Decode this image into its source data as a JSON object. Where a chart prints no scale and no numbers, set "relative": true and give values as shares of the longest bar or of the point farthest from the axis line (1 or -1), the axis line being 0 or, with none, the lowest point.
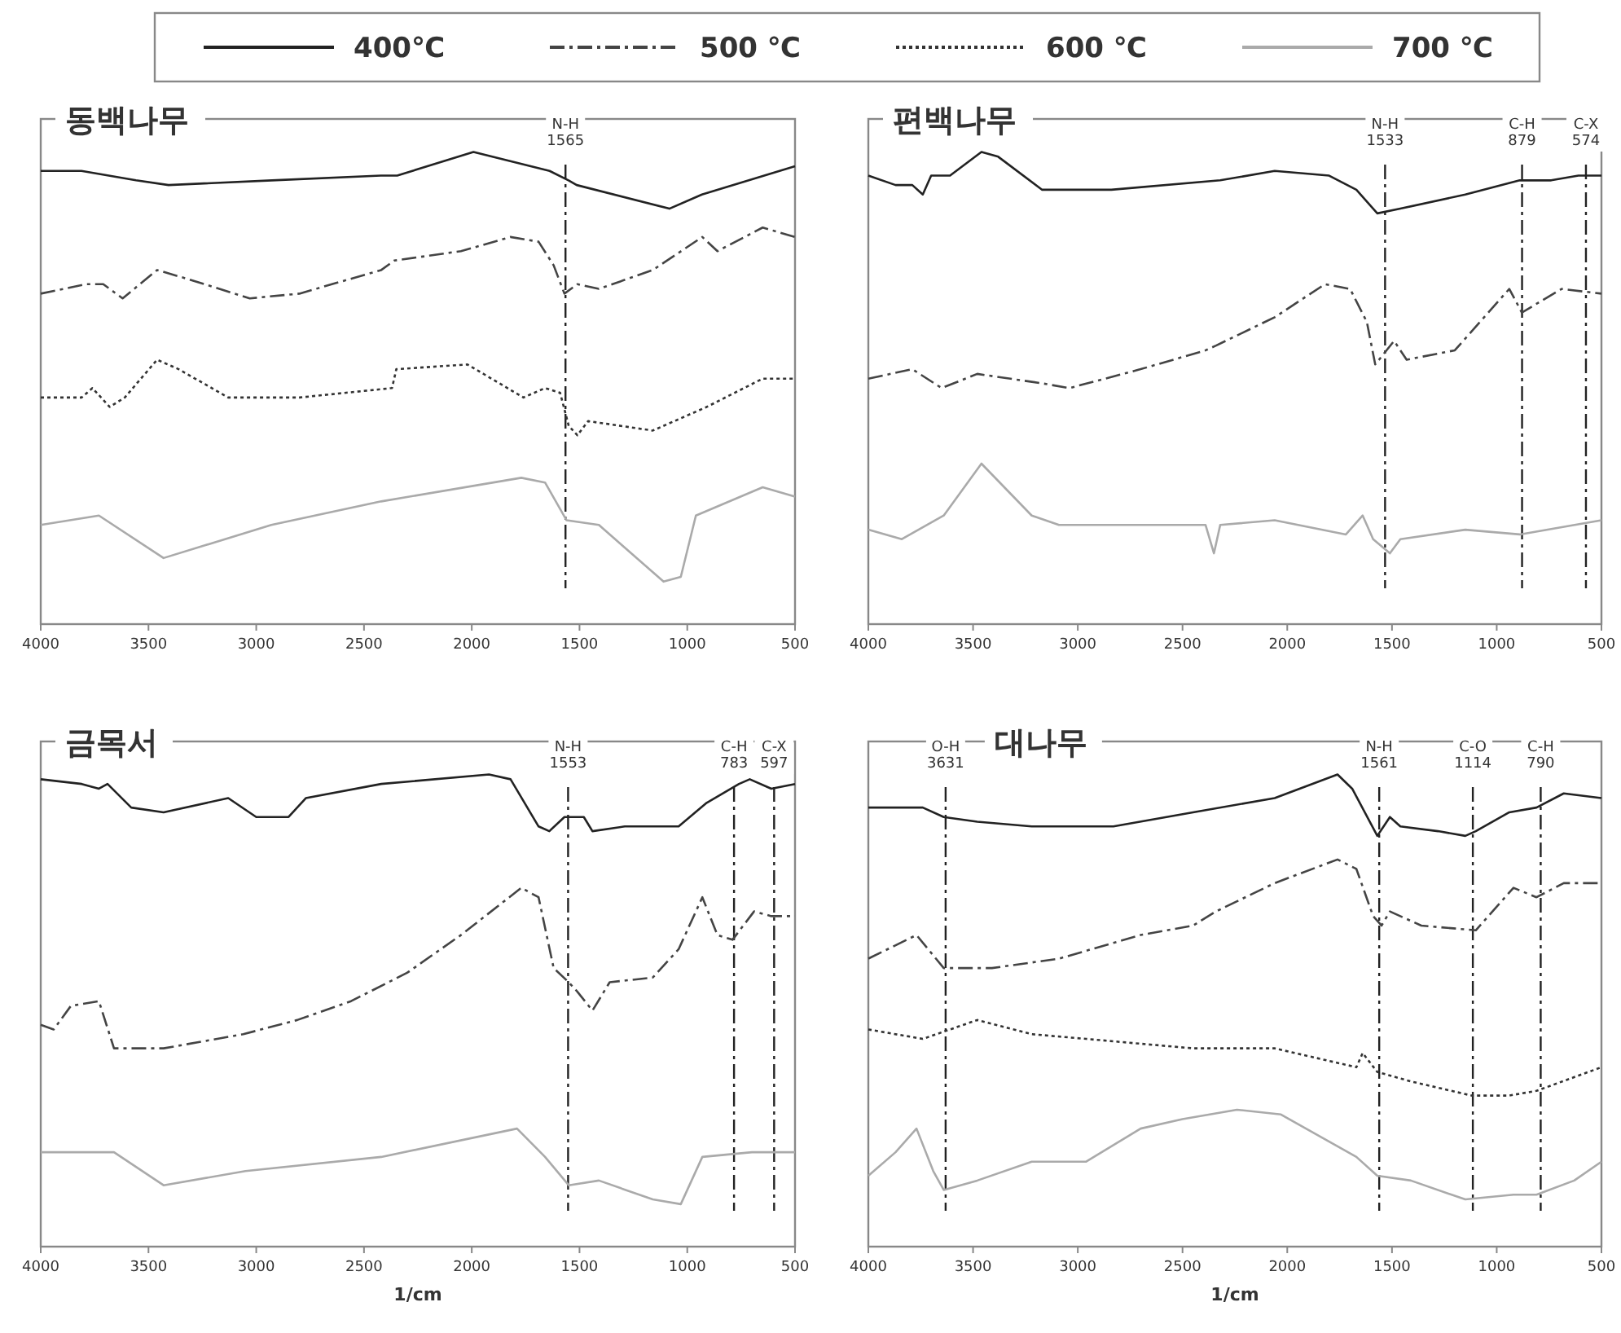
{
  "chart_data": [
    {
      "type": "line",
      "title": "동백나무",
      "relative": true,
      "legend": "top",
      "xlim": [
        4000,
        500
      ],
      "xticks": [
        4000,
        3500,
        3000,
        2500,
        2000,
        1500,
        1000,
        500
      ],
      "ref_lines": [
        {
          "axis": "x",
          "value": 1565,
          "label": "N-H\n1565",
          "line_style": "dashed",
          "color": "#222222"
        }
      ],
      "series": [
        {
          "name": "400℃",
          "color": "#222222",
          "line_style": "solid",
          "x": [
            4000,
            3811,
            3558,
            3407,
            2927,
            2422,
            2346,
            1992,
            1639,
            1551,
            1513,
            1083,
            932,
            500
          ],
          "values": [
            0.96,
            0.96,
            0.94,
            0.93,
            0.94,
            0.95,
            0.95,
            1.0,
            0.96,
            0.94,
            0.93,
            0.88,
            0.91,
            0.97
          ]
        },
        {
          "name": "500 ℃",
          "color": "#444444",
          "line_style": "dashed",
          "x": [
            4000,
            3790,
            3710,
            3620,
            3460,
            3310,
            3030,
            2800,
            2420,
            2360,
            2050,
            1820,
            1690,
            1620,
            1570,
            1510,
            1410,
            1160,
            930,
            860,
            650,
            500
          ],
          "values": [
            0.7,
            0.72,
            0.72,
            0.69,
            0.75,
            0.73,
            0.69,
            0.7,
            0.75,
            0.77,
            0.79,
            0.82,
            0.81,
            0.76,
            0.7,
            0.72,
            0.71,
            0.75,
            0.82,
            0.79,
            0.84,
            0.82
          ]
        },
        {
          "name": "600 ℃",
          "color": "#333333",
          "line_style": "dotted",
          "x": [
            4000,
            3810,
            3760,
            3680,
            3610,
            3460,
            3360,
            3130,
            2800,
            2370,
            2350,
            2020,
            1760,
            1660,
            1590,
            1550,
            1510,
            1460,
            1160,
            910,
            650,
            500
          ],
          "values": [
            0.48,
            0.48,
            0.5,
            0.46,
            0.48,
            0.56,
            0.54,
            0.48,
            0.48,
            0.5,
            0.54,
            0.55,
            0.48,
            0.5,
            0.49,
            0.42,
            0.4,
            0.43,
            0.41,
            0.46,
            0.52,
            0.52
          ]
        },
        {
          "name": "700 ℃",
          "color": "#aaaaaa",
          "line_style": "solid",
          "x": [
            4000,
            3730,
            3430,
            2930,
            2420,
            1770,
            1660,
            1560,
            1410,
            1110,
            1030,
            960,
            650,
            500
          ],
          "values": [
            0.21,
            0.23,
            0.14,
            0.21,
            0.26,
            0.31,
            0.3,
            0.22,
            0.21,
            0.09,
            0.1,
            0.23,
            0.29,
            0.27
          ]
        }
      ]
    },
    {
      "type": "line",
      "title": "편백나무",
      "relative": true,
      "xlim": [
        4000,
        500
      ],
      "xticks": [
        4000,
        3500,
        3000,
        2500,
        2000,
        1500,
        1000,
        500
      ],
      "ref_lines": [
        {
          "axis": "x",
          "value": 1533,
          "label": "N-H\n1533",
          "line_style": "dashed",
          "color": "#222222"
        },
        {
          "axis": "x",
          "value": 879,
          "label": "C-H\n879",
          "line_style": "dashed",
          "color": "#222222"
        },
        {
          "axis": "x",
          "value": 574,
          "label": "C-X\n574",
          "line_style": "dashed",
          "color": "#222222"
        }
      ],
      "series": [
        {
          "color": "#222222",
          "line_style": "solid",
          "x": [
            4000,
            3870,
            3790,
            3740,
            3700,
            3610,
            3460,
            3380,
            3170,
            2840,
            2320,
            2060,
            1800,
            1670,
            1570,
            1460,
            1150,
            890,
            740,
            610,
            500
          ],
          "values": [
            0.95,
            0.93,
            0.93,
            0.91,
            0.95,
            0.95,
            1.0,
            0.99,
            0.92,
            0.92,
            0.94,
            0.96,
            0.95,
            0.92,
            0.87,
            0.88,
            0.91,
            0.94,
            0.94,
            0.95,
            0.95
          ]
        },
        {
          "color": "#444444",
          "line_style": "dashed",
          "x": [
            4000,
            3790,
            3650,
            3480,
            3170,
            3040,
            2700,
            2390,
            2340,
            2060,
            1820,
            1700,
            1620,
            1580,
            1490,
            1430,
            1200,
            940,
            880,
            690,
            500
          ],
          "values": [
            0.52,
            0.54,
            0.5,
            0.53,
            0.51,
            0.5,
            0.54,
            0.58,
            0.59,
            0.65,
            0.72,
            0.71,
            0.64,
            0.55,
            0.6,
            0.56,
            0.58,
            0.71,
            0.66,
            0.71,
            0.7
          ]
        },
        {
          "color": "#aaaaaa",
          "line_style": "solid",
          "x": [
            4000,
            3840,
            3640,
            3460,
            3220,
            3090,
            2390,
            2350,
            2320,
            2060,
            1720,
            1640,
            1590,
            1510,
            1460,
            1150,
            890,
            500
          ],
          "values": [
            0.2,
            0.18,
            0.23,
            0.34,
            0.23,
            0.21,
            0.21,
            0.15,
            0.21,
            0.22,
            0.19,
            0.23,
            0.18,
            0.15,
            0.18,
            0.2,
            0.19,
            0.22
          ]
        }
      ]
    },
    {
      "type": "line",
      "title": "금목서",
      "xlabel": "1/cm",
      "relative": true,
      "xlim": [
        4000,
        500
      ],
      "xticks": [
        4000,
        3500,
        3000,
        2500,
        2000,
        1500,
        1000,
        500
      ],
      "ref_lines": [
        {
          "axis": "x",
          "value": 1553,
          "label": "N-H\n1553",
          "line_style": "dashed",
          "color": "#222222"
        },
        {
          "axis": "x",
          "value": 783,
          "label": "C-H\n783",
          "line_style": "dashed",
          "color": "#222222"
        },
        {
          "axis": "x",
          "value": 597,
          "label": "C-X\n597",
          "line_style": "dashed",
          "color": "#222222"
        }
      ],
      "series": [
        {
          "color": "#222222",
          "line_style": "solid",
          "x": [
            4000,
            3810,
            3730,
            3690,
            3580,
            3430,
            3130,
            3000,
            2850,
            2770,
            2420,
            1920,
            1820,
            1690,
            1640,
            1570,
            1480,
            1440,
            1290,
            1040,
            910,
            760,
            710,
            610,
            500
          ],
          "values": [
            0.99,
            0.98,
            0.97,
            0.98,
            0.93,
            0.92,
            0.95,
            0.91,
            0.91,
            0.95,
            0.98,
            1.0,
            0.99,
            0.89,
            0.88,
            0.91,
            0.91,
            0.88,
            0.89,
            0.89,
            0.94,
            0.98,
            0.99,
            0.97,
            0.98
          ]
        },
        {
          "color": "#444444",
          "line_style": "dashed",
          "x": [
            4000,
            3940,
            3860,
            3730,
            3660,
            3430,
            3060,
            2810,
            2560,
            2300,
            2050,
            1770,
            1690,
            1620,
            1550,
            1510,
            1440,
            1360,
            1160,
            1040,
            930,
            860,
            790,
            690,
            610,
            500
          ],
          "values": [
            0.47,
            0.46,
            0.51,
            0.52,
            0.42,
            0.42,
            0.45,
            0.48,
            0.52,
            0.58,
            0.66,
            0.76,
            0.74,
            0.59,
            0.56,
            0.54,
            0.5,
            0.56,
            0.57,
            0.63,
            0.74,
            0.66,
            0.65,
            0.71,
            0.7,
            0.7
          ]
        },
        {
          "color": "#aaaaaa",
          "line_style": "solid",
          "x": [
            4000,
            3660,
            3430,
            3050,
            2420,
            1790,
            1660,
            1550,
            1410,
            1160,
            1030,
            930,
            700,
            500
          ],
          "values": [
            0.2,
            0.2,
            0.13,
            0.16,
            0.19,
            0.25,
            0.19,
            0.13,
            0.14,
            0.1,
            0.09,
            0.19,
            0.2,
            0.2
          ]
        }
      ]
    },
    {
      "type": "line",
      "title": "대나무",
      "xlabel": "1/cm",
      "relative": true,
      "xlim": [
        4000,
        500
      ],
      "xticks": [
        4000,
        3500,
        3000,
        2500,
        2000,
        1500,
        1000,
        500
      ],
      "ref_lines": [
        {
          "axis": "x",
          "value": 3631,
          "label": "O-H\n3631",
          "line_style": "dashed",
          "color": "#222222"
        },
        {
          "axis": "x",
          "value": 1561,
          "label": "N-H\n1561",
          "line_style": "dashed",
          "color": "#222222"
        },
        {
          "axis": "x",
          "value": 1114,
          "label": "C-O\n1114",
          "line_style": "dashed",
          "color": "#222222"
        },
        {
          "axis": "x",
          "value": 790,
          "label": "C-H\n790",
          "line_style": "dashed",
          "color": "#222222"
        }
      ],
      "series": [
        {
          "color": "#222222",
          "line_style": "solid",
          "x": [
            4000,
            3740,
            3640,
            3480,
            3220,
            2830,
            2450,
            2060,
            1760,
            1690,
            1570,
            1510,
            1460,
            1280,
            1150,
            1100,
            940,
            810,
            680,
            500
          ],
          "values": [
            0.93,
            0.93,
            0.91,
            0.9,
            0.89,
            0.89,
            0.92,
            0.95,
            1.0,
            0.97,
            0.87,
            0.91,
            0.89,
            0.88,
            0.87,
            0.88,
            0.92,
            0.93,
            0.96,
            0.95
          ]
        },
        {
          "color": "#444444",
          "line_style": "dashed",
          "x": [
            4000,
            3770,
            3640,
            3410,
            3090,
            2700,
            2450,
            2340,
            2060,
            1760,
            1670,
            1590,
            1550,
            1510,
            1360,
            1100,
            920,
            810,
            680,
            500
          ],
          "values": [
            0.61,
            0.66,
            0.59,
            0.59,
            0.61,
            0.66,
            0.68,
            0.71,
            0.77,
            0.82,
            0.8,
            0.7,
            0.68,
            0.71,
            0.68,
            0.67,
            0.76,
            0.74,
            0.77,
            0.77
          ]
        },
        {
          "color": "#333333",
          "line_style": "dotted",
          "x": [
            4000,
            3740,
            3480,
            3220,
            2960,
            2450,
            2060,
            1670,
            1640,
            1570,
            1410,
            1120,
            940,
            810,
            500
          ],
          "values": [
            0.46,
            0.44,
            0.48,
            0.45,
            0.44,
            0.42,
            0.42,
            0.38,
            0.41,
            0.37,
            0.35,
            0.32,
            0.32,
            0.33,
            0.38
          ]
        },
        {
          "color": "#aaaaaa",
          "line_style": "solid",
          "x": [
            4000,
            3870,
            3770,
            3690,
            3640,
            3480,
            3220,
            2960,
            2700,
            2500,
            2240,
            2030,
            1670,
            1570,
            1410,
            1150,
            920,
            810,
            630,
            500
          ],
          "values": [
            0.15,
            0.2,
            0.25,
            0.16,
            0.12,
            0.14,
            0.18,
            0.18,
            0.25,
            0.27,
            0.29,
            0.28,
            0.19,
            0.15,
            0.14,
            0.1,
            0.11,
            0.11,
            0.14,
            0.18
          ]
        }
      ]
    }
  ]
}
